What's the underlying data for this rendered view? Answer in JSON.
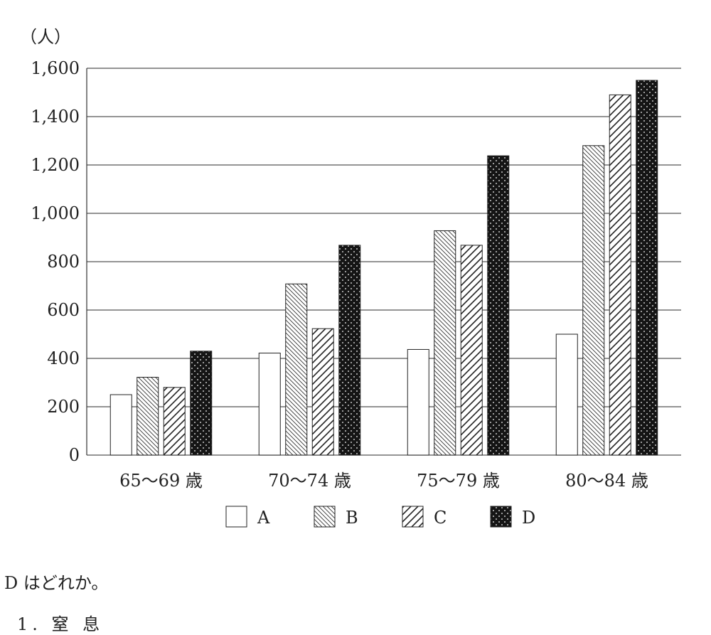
{
  "chart_data": {
    "type": "bar",
    "unit_label": "（人）",
    "ylim": [
      0,
      1600
    ],
    "yticks": [
      0,
      200,
      400,
      600,
      800,
      1000,
      1200,
      1400,
      1600
    ],
    "ytick_labels": [
      "0",
      "200",
      "400",
      "600",
      "800",
      "1,000",
      "1,200",
      "1,400",
      "1,600"
    ],
    "categories": [
      "65～69 歳",
      "70～74 歳",
      "75～79 歳",
      "80～84 歳"
    ],
    "series": [
      {
        "name": "A",
        "pattern": "plain",
        "values": [
          250,
          422,
          437,
          500
        ]
      },
      {
        "name": "B",
        "pattern": "backslash-hatch",
        "values": [
          322,
          708,
          928,
          1280
        ]
      },
      {
        "name": "C",
        "pattern": "slash-hatch",
        "values": [
          280,
          523,
          868,
          1490
        ]
      },
      {
        "name": "D",
        "pattern": "dotted-black",
        "values": [
          430,
          868,
          1238,
          1550
        ]
      }
    ],
    "grid": true,
    "legend": "bottom"
  },
  "text": {
    "question": "D はどれか。",
    "option_1": "1. 窒  息"
  }
}
